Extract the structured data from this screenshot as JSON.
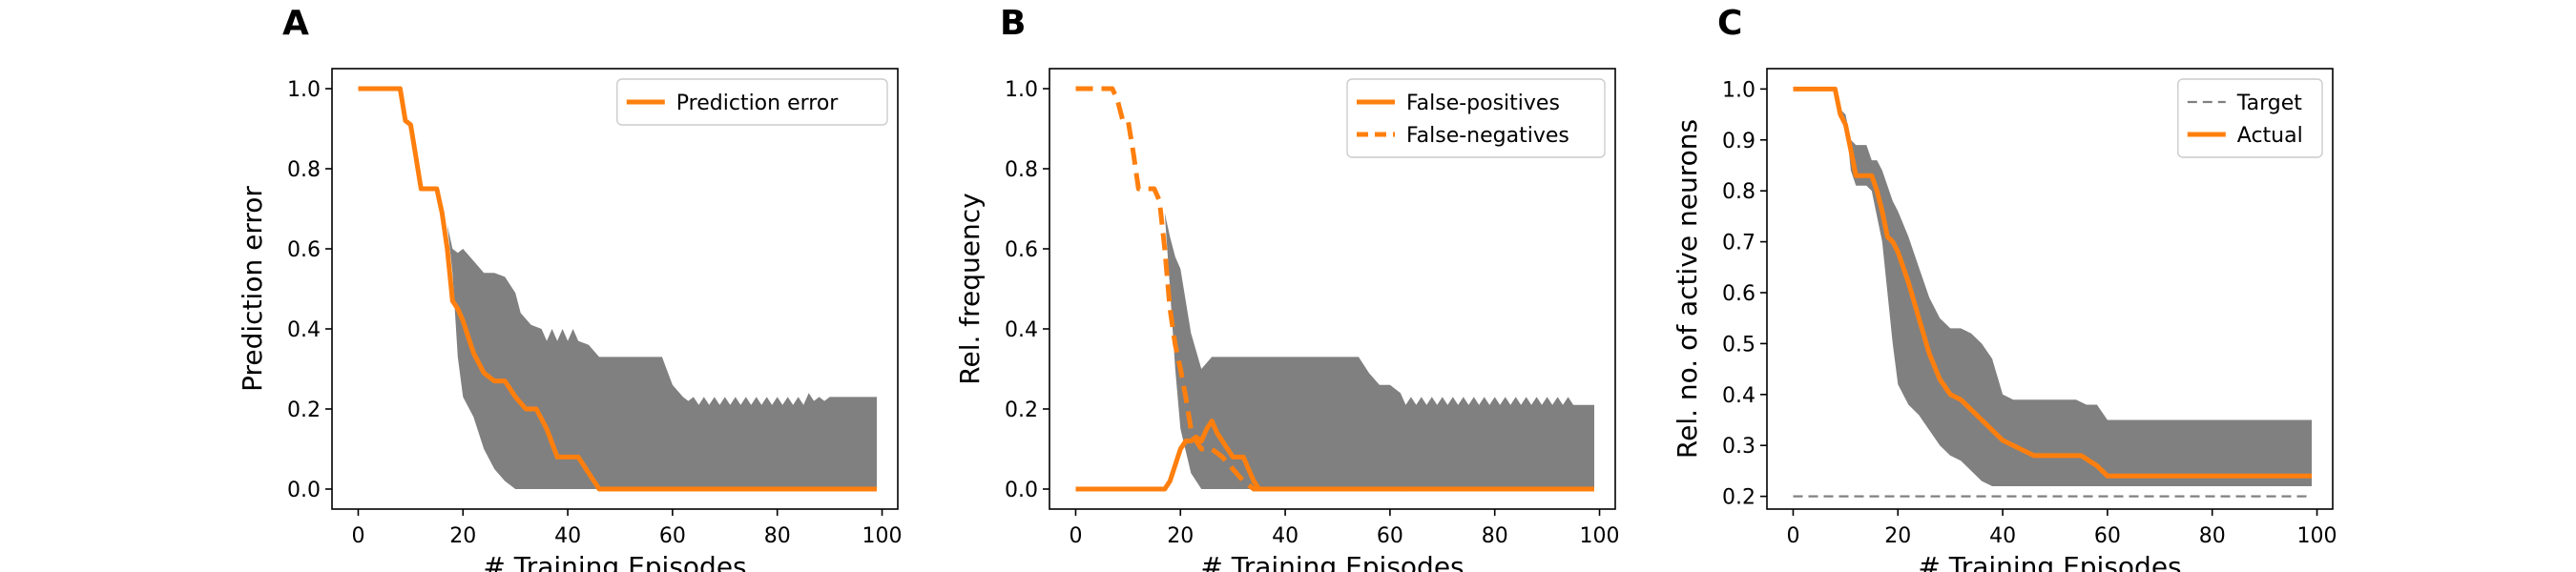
{
  "chart_data": [
    {
      "type": "line",
      "panel_label": "A",
      "xlabel": "# Training Episodes",
      "ylabel": "Prediction error",
      "xlim": [
        -5,
        103
      ],
      "ylim": [
        -0.05,
        1.05
      ],
      "xticks": [
        0,
        20,
        40,
        60,
        80,
        100
      ],
      "yticks": [
        0.0,
        0.2,
        0.4,
        0.6,
        0.8,
        1.0
      ],
      "ytick_labels": [
        "0.0",
        "0.2",
        "0.4",
        "0.6",
        "0.8",
        "1.0"
      ],
      "legend_position": "top-right",
      "band": {
        "x": [
          0,
          8,
          9,
          10,
          12,
          15,
          17,
          18,
          19,
          20,
          22,
          24,
          26,
          28,
          30,
          31,
          33,
          35,
          36,
          37,
          38,
          39,
          40,
          41,
          42,
          44,
          46,
          50,
          54,
          58,
          60,
          62,
          63,
          64,
          65,
          66,
          67,
          68,
          69,
          70,
          71,
          72,
          73,
          74,
          75,
          76,
          77,
          78,
          79,
          80,
          81,
          82,
          83,
          84,
          85,
          86,
          87,
          88,
          89,
          90,
          91,
          92,
          93,
          94,
          95,
          96,
          99
        ],
        "upper": [
          1.0,
          1.0,
          0.93,
          0.9,
          0.76,
          0.75,
          0.66,
          0.6,
          0.59,
          0.6,
          0.57,
          0.54,
          0.54,
          0.53,
          0.49,
          0.44,
          0.41,
          0.4,
          0.37,
          0.4,
          0.37,
          0.4,
          0.37,
          0.4,
          0.37,
          0.36,
          0.33,
          0.33,
          0.33,
          0.33,
          0.26,
          0.23,
          0.22,
          0.23,
          0.21,
          0.23,
          0.21,
          0.23,
          0.21,
          0.23,
          0.21,
          0.23,
          0.21,
          0.23,
          0.21,
          0.23,
          0.21,
          0.23,
          0.21,
          0.23,
          0.21,
          0.23,
          0.21,
          0.23,
          0.21,
          0.24,
          0.22,
          0.23,
          0.22,
          0.23,
          0.23,
          0.23,
          0.23,
          0.23,
          0.23,
          0.23,
          0.23
        ],
        "lower": [
          1.0,
          1.0,
          0.93,
          0.9,
          0.76,
          0.75,
          0.66,
          0.54,
          0.33,
          0.23,
          0.18,
          0.1,
          0.05,
          0.02,
          0.0,
          0.0,
          0.0,
          0.0,
          0.0,
          0.0,
          0.0,
          0.0,
          0.0,
          0.0,
          0.0,
          0.0,
          0.0,
          0.0,
          0.0,
          0.0,
          0.0,
          0.0,
          0.0,
          0.0,
          0.0,
          0.0,
          0.0,
          0.0,
          0.0,
          0.0,
          0.0,
          0.0,
          0.0,
          0.0,
          0.0,
          0.0,
          0.0,
          0.0,
          0.0,
          0.0,
          0.0,
          0.0,
          0.0,
          0.0,
          0.0,
          0.0,
          0.0,
          0.0,
          0.0,
          0.0,
          0.0,
          0.0,
          0.0,
          0.0,
          0.0,
          0.0,
          0.0
        ]
      },
      "series": [
        {
          "name": "Prediction error",
          "style": "solid",
          "x": [
            0,
            8,
            9,
            10,
            11,
            12,
            13,
            14,
            15,
            16,
            17,
            18,
            19,
            20,
            22,
            24,
            26,
            28,
            30,
            32,
            34,
            36,
            38,
            40,
            42,
            44,
            46,
            60,
            80,
            99
          ],
          "y": [
            1.0,
            1.0,
            0.92,
            0.91,
            0.83,
            0.75,
            0.75,
            0.75,
            0.75,
            0.69,
            0.6,
            0.47,
            0.45,
            0.42,
            0.34,
            0.29,
            0.27,
            0.27,
            0.23,
            0.2,
            0.2,
            0.15,
            0.08,
            0.08,
            0.08,
            0.04,
            0.0,
            0.0,
            0.0,
            0.0
          ]
        }
      ]
    },
    {
      "type": "line",
      "panel_label": "B",
      "xlabel": "# Training Episodes",
      "ylabel": "Rel. frequency",
      "xlim": [
        -5,
        103
      ],
      "ylim": [
        -0.05,
        1.05
      ],
      "xticks": [
        0,
        20,
        40,
        60,
        80,
        100
      ],
      "yticks": [
        0.0,
        0.2,
        0.4,
        0.6,
        0.8,
        1.0
      ],
      "ytick_labels": [
        "0.0",
        "0.2",
        "0.4",
        "0.6",
        "0.8",
        "1.0"
      ],
      "legend_position": "top-right",
      "band": {
        "x": [
          0,
          8,
          9,
          10,
          12,
          15,
          16,
          17,
          18,
          19,
          20,
          22,
          24,
          26,
          28,
          30,
          32,
          34,
          36,
          38,
          40,
          42,
          44,
          46,
          50,
          54,
          56,
          58,
          60,
          62,
          63,
          64,
          65,
          66,
          67,
          68,
          69,
          70,
          71,
          72,
          73,
          74,
          75,
          76,
          77,
          78,
          79,
          80,
          81,
          82,
          83,
          84,
          85,
          86,
          87,
          88,
          89,
          90,
          91,
          92,
          93,
          94,
          95,
          96,
          99
        ],
        "upper": [
          1.0,
          1.0,
          0.93,
          0.9,
          0.76,
          0.75,
          0.75,
          0.69,
          0.63,
          0.58,
          0.55,
          0.39,
          0.3,
          0.33,
          0.33,
          0.33,
          0.33,
          0.33,
          0.33,
          0.33,
          0.33,
          0.33,
          0.33,
          0.33,
          0.33,
          0.33,
          0.29,
          0.26,
          0.26,
          0.24,
          0.21,
          0.23,
          0.21,
          0.23,
          0.21,
          0.23,
          0.21,
          0.23,
          0.21,
          0.23,
          0.21,
          0.23,
          0.21,
          0.23,
          0.21,
          0.23,
          0.21,
          0.23,
          0.21,
          0.23,
          0.21,
          0.23,
          0.21,
          0.23,
          0.21,
          0.23,
          0.21,
          0.23,
          0.21,
          0.23,
          0.21,
          0.23,
          0.21,
          0.21,
          0.21
        ],
        "lower": [
          1.0,
          1.0,
          0.93,
          0.9,
          0.76,
          0.75,
          0.75,
          0.69,
          0.5,
          0.3,
          0.15,
          0.04,
          0.0,
          0.0,
          0.0,
          0.0,
          0.0,
          0.0,
          0.0,
          0.0,
          0.0,
          0.0,
          0.0,
          0.0,
          0.0,
          0.0,
          0.0,
          0.0,
          0.0,
          0.0,
          0.0,
          0.0,
          0.0,
          0.0,
          0.0,
          0.0,
          0.0,
          0.0,
          0.0,
          0.0,
          0.0,
          0.0,
          0.0,
          0.0,
          0.0,
          0.0,
          0.0,
          0.0,
          0.0,
          0.0,
          0.0,
          0.0,
          0.0,
          0.0,
          0.0,
          0.0,
          0.0,
          0.0,
          0.0,
          0.0,
          0.0,
          0.0,
          0.0,
          0.0,
          0.0
        ]
      },
      "series": [
        {
          "name": "False-positives",
          "style": "solid",
          "x": [
            0,
            17,
            18,
            19,
            20,
            21,
            22,
            23,
            24,
            25,
            26,
            27,
            28,
            29,
            30,
            31,
            32,
            33,
            34,
            35,
            36,
            37,
            40,
            60,
            80,
            99
          ],
          "y": [
            0.0,
            0.0,
            0.02,
            0.06,
            0.1,
            0.12,
            0.12,
            0.13,
            0.12,
            0.15,
            0.17,
            0.14,
            0.12,
            0.1,
            0.08,
            0.08,
            0.08,
            0.05,
            0.02,
            0.0,
            0.0,
            0.0,
            0.0,
            0.0,
            0.0,
            0.0
          ]
        },
        {
          "name": "False-negatives",
          "style": "dashed",
          "x": [
            0,
            7,
            8,
            9,
            10,
            11,
            12,
            13,
            14,
            15,
            16,
            17,
            18,
            19,
            20,
            21,
            22,
            23,
            24,
            25,
            26,
            28,
            30,
            32,
            34,
            36,
            40,
            60,
            80,
            99
          ],
          "y": [
            1.0,
            1.0,
            0.97,
            0.92,
            0.92,
            0.84,
            0.75,
            0.75,
            0.75,
            0.75,
            0.72,
            0.6,
            0.45,
            0.36,
            0.3,
            0.23,
            0.15,
            0.12,
            0.1,
            0.1,
            0.1,
            0.08,
            0.05,
            0.02,
            0.0,
            0.0,
            0.0,
            0.0,
            0.0,
            0.0
          ]
        }
      ]
    },
    {
      "type": "line",
      "panel_label": "C",
      "xlabel": "# Training Episodes",
      "ylabel": "Rel. no. of active neurons",
      "xlim": [
        -5,
        103
      ],
      "ylim": [
        0.175,
        1.04
      ],
      "xticks": [
        0,
        20,
        40,
        60,
        80,
        100
      ],
      "yticks": [
        0.2,
        0.3,
        0.4,
        0.5,
        0.6,
        0.7,
        0.8,
        0.9,
        1.0
      ],
      "ytick_labels": [
        "0.2",
        "0.3",
        "0.4",
        "0.5",
        "0.6",
        "0.7",
        "0.8",
        "0.9",
        "1.0"
      ],
      "legend_position": "top-right",
      "band": {
        "x": [
          0,
          8,
          9,
          10,
          11,
          12,
          14,
          15,
          16,
          17,
          18,
          19,
          20,
          22,
          24,
          26,
          28,
          30,
          32,
          34,
          36,
          38,
          40,
          42,
          44,
          46,
          50,
          54,
          56,
          58,
          60,
          70,
          80,
          90,
          99
        ],
        "upper": [
          1.0,
          1.0,
          0.96,
          0.95,
          0.9,
          0.89,
          0.89,
          0.86,
          0.86,
          0.84,
          0.81,
          0.78,
          0.76,
          0.71,
          0.65,
          0.59,
          0.55,
          0.53,
          0.53,
          0.52,
          0.5,
          0.47,
          0.4,
          0.39,
          0.39,
          0.39,
          0.39,
          0.39,
          0.38,
          0.38,
          0.35,
          0.35,
          0.35,
          0.35,
          0.35
        ],
        "lower": [
          1.0,
          1.0,
          0.96,
          0.94,
          0.84,
          0.81,
          0.81,
          0.8,
          0.75,
          0.7,
          0.6,
          0.5,
          0.42,
          0.38,
          0.36,
          0.33,
          0.3,
          0.28,
          0.27,
          0.25,
          0.23,
          0.22,
          0.22,
          0.22,
          0.22,
          0.22,
          0.22,
          0.22,
          0.22,
          0.22,
          0.22,
          0.22,
          0.22,
          0.22,
          0.22
        ]
      },
      "series": [
        {
          "name": "Target",
          "style": "dashed-thin",
          "color": "#808080",
          "x": [
            0,
            99
          ],
          "y": [
            0.2,
            0.2
          ]
        },
        {
          "name": "Actual",
          "style": "solid",
          "x": [
            0,
            8,
            9,
            10,
            11,
            12,
            13,
            14,
            15,
            16,
            17,
            18,
            19,
            20,
            21,
            22,
            24,
            26,
            28,
            30,
            32,
            34,
            36,
            38,
            40,
            42,
            44,
            46,
            50,
            55,
            58,
            60,
            80,
            99
          ],
          "y": [
            1.0,
            1.0,
            0.95,
            0.93,
            0.88,
            0.83,
            0.83,
            0.83,
            0.83,
            0.8,
            0.76,
            0.71,
            0.7,
            0.68,
            0.65,
            0.62,
            0.55,
            0.48,
            0.43,
            0.4,
            0.39,
            0.37,
            0.35,
            0.33,
            0.31,
            0.3,
            0.29,
            0.28,
            0.28,
            0.28,
            0.26,
            0.24,
            0.24,
            0.24
          ]
        }
      ]
    }
  ],
  "colors": {
    "accent": "#ff7f0e",
    "band": "#808080",
    "target": "#808080"
  }
}
